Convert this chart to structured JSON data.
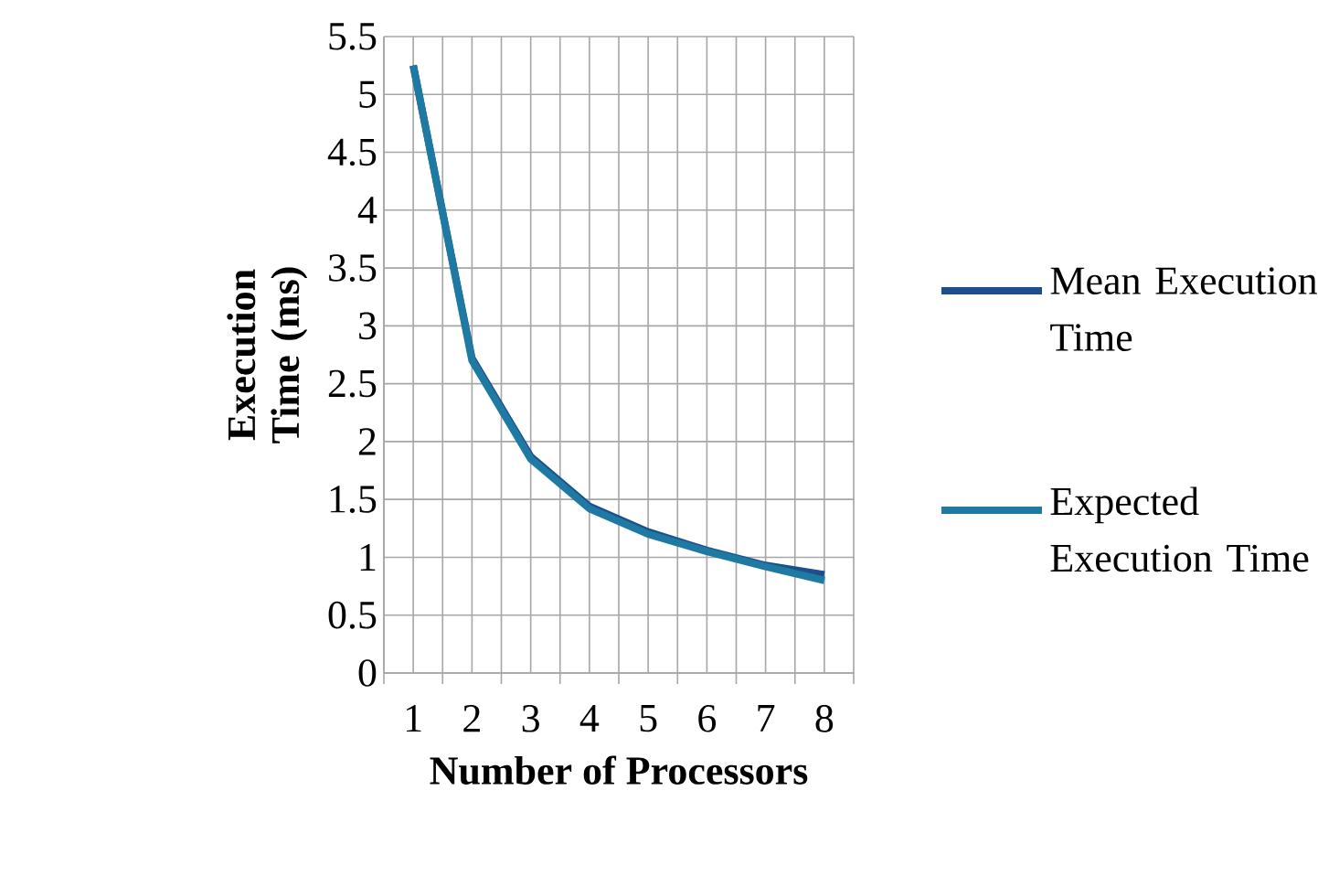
{
  "chart_data": {
    "type": "line",
    "xlabel": "Number of Processors",
    "ylabel": "Execution Time (ms)",
    "categories": [
      "1",
      "2",
      "3",
      "4",
      "5",
      "6",
      "7",
      "8"
    ],
    "series": [
      {
        "name": "Mean Execution Time",
        "color": "#1f4e8c",
        "values": [
          5.25,
          2.72,
          1.87,
          1.44,
          1.22,
          1.06,
          0.93,
          0.85
        ]
      },
      {
        "name": "Expected Execution Time",
        "color": "#1f7aa3",
        "values": [
          5.25,
          2.7,
          1.85,
          1.42,
          1.2,
          1.05,
          0.92,
          0.8
        ]
      }
    ],
    "ylim": [
      0,
      5.5
    ],
    "yticks": [
      0,
      0.5,
      1,
      1.5,
      2,
      2.5,
      3,
      3.5,
      4,
      4.5,
      5,
      5.5
    ],
    "grid": true,
    "legend": "right",
    "marker": "none",
    "line_style": "solid"
  }
}
